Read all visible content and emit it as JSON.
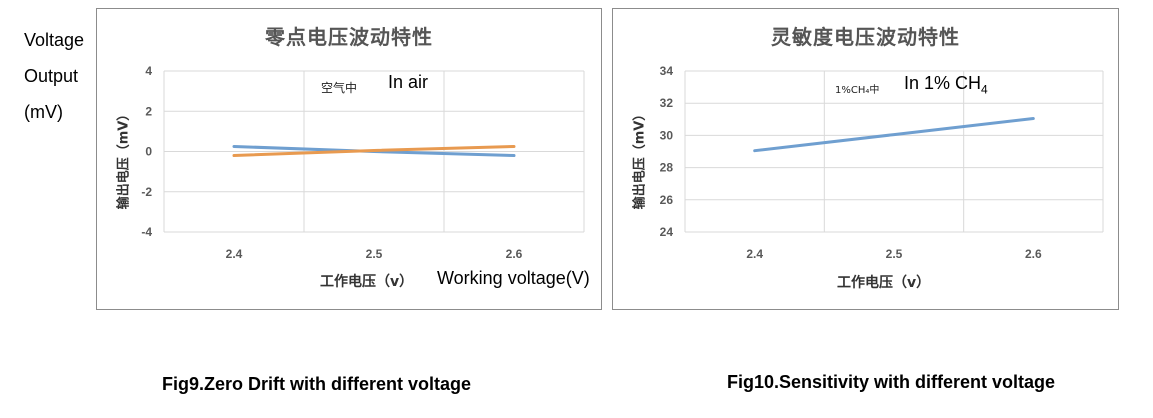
{
  "side_label": [
    "Voltage",
    "Output",
    "(mV)"
  ],
  "chart_data": [
    {
      "type": "line",
      "title": "零点电压波动特性",
      "ylabel": "输出电压（mV）",
      "xlabel": "工作电压（v）",
      "xlabel_en": "Working voltage(V)",
      "annotation_cn": "空气中",
      "annotation_en": "In air",
      "categories": [
        "2.4",
        "2.5",
        "2.6"
      ],
      "ylim": [
        -4,
        4
      ],
      "yticks": [
        "4",
        "2",
        "0",
        "-2",
        "-4"
      ],
      "grid": true,
      "series": [
        {
          "values": [
            0.25,
            0.0,
            -0.2
          ],
          "color": "#6f9fd0"
        },
        {
          "values": [
            -0.2,
            0.05,
            0.25
          ],
          "color": "#e89a50"
        }
      ],
      "caption": "Fig9.Zero Drift with different voltage"
    },
    {
      "type": "line",
      "title": "灵敏度电压波动特性",
      "ylabel": "输出电压（mV）",
      "xlabel": "工作电压（v）",
      "annotation_cn": "1%CH₄中",
      "annotation_en_prefix": "In 1% CH",
      "annotation_en_sub": "4",
      "categories": [
        "2.4",
        "2.5",
        "2.6"
      ],
      "ylim": [
        24,
        34
      ],
      "yticks": [
        "34",
        "32",
        "30",
        "28",
        "26",
        "24"
      ],
      "grid": true,
      "series": [
        {
          "values": [
            29.05,
            30.05,
            31.05
          ],
          "color": "#6f9fd0"
        }
      ],
      "caption": "Fig10.Sensitivity with different voltage"
    }
  ]
}
